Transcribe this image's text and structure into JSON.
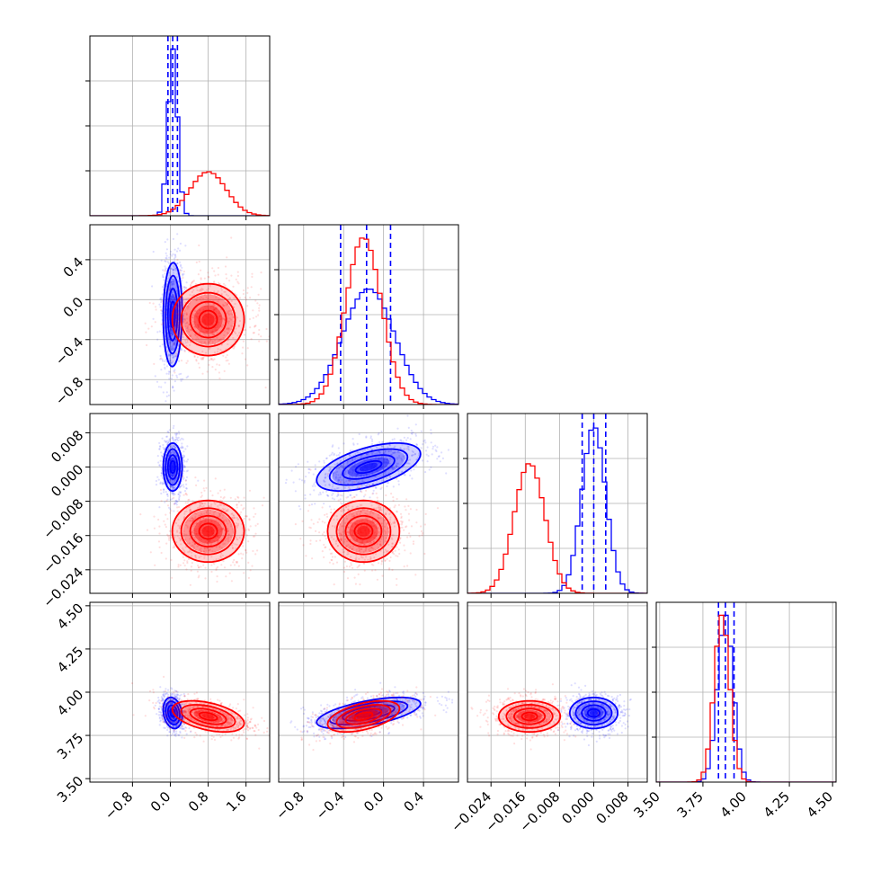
{
  "chart_data": {
    "type": "scatter",
    "variant": "corner-plot",
    "grid": true,
    "colors": {
      "blue": "#0000ff",
      "red": "#ff0000",
      "grid": "#b0b0b0"
    },
    "parameters": [
      {
        "ticks": [
          -0.8,
          0.0,
          0.8,
          1.6
        ],
        "tick_labels": [
          "−0.8",
          "0.0",
          "0.8",
          "1.6"
        ],
        "range": [
          -1.7,
          2.1
        ]
      },
      {
        "ticks": [
          -0.8,
          -0.4,
          0.0,
          0.4
        ],
        "tick_labels": [
          "−0.8",
          "−0.4",
          "0.0",
          "0.4"
        ],
        "range": [
          -1.05,
          0.75
        ]
      },
      {
        "ticks": [
          -0.024,
          -0.016,
          -0.008,
          0.0,
          0.008
        ],
        "tick_labels": [
          "−0.024",
          "−0.016",
          "−0.008",
          "0.000",
          "0.008"
        ],
        "range": [
          -0.0295,
          0.0125
        ]
      },
      {
        "ticks": [
          3.5,
          3.75,
          4.0,
          4.25,
          4.5
        ],
        "tick_labels": [
          "3.50",
          "3.75",
          "4.00",
          "4.25",
          "4.50"
        ],
        "range": [
          3.48,
          4.52
        ]
      }
    ],
    "series": [
      {
        "color": "blue",
        "means": [
          0.05,
          -0.15,
          0.0,
          3.88
        ],
        "stds": [
          0.1,
          0.26,
          0.0028,
          0.045
        ],
        "quantiles": [
          [
            -0.05,
            0.05,
            0.15
          ],
          [
            -0.43,
            -0.17,
            0.07
          ],
          [
            -0.0027,
            0.0,
            0.0028
          ],
          [
            3.84,
            3.88,
            3.93
          ]
        ]
      },
      {
        "color": "red",
        "means": [
          0.8,
          -0.2,
          -0.015,
          3.86
        ],
        "stds": [
          0.38,
          0.18,
          0.0036,
          0.045
        ]
      }
    ],
    "correlations": {
      "blue": {
        "1-0": 0.05,
        "2-0": 0.0,
        "2-1": 0.55,
        "3-0": -0.2,
        "3-1": 0.6,
        "3-2": 0.0
      },
      "red": {
        "1-0": 0.0,
        "2-0": 0.0,
        "2-1": 0.0,
        "3-0": -0.45,
        "3-1": 0.5,
        "3-2": 0.0
      }
    }
  }
}
